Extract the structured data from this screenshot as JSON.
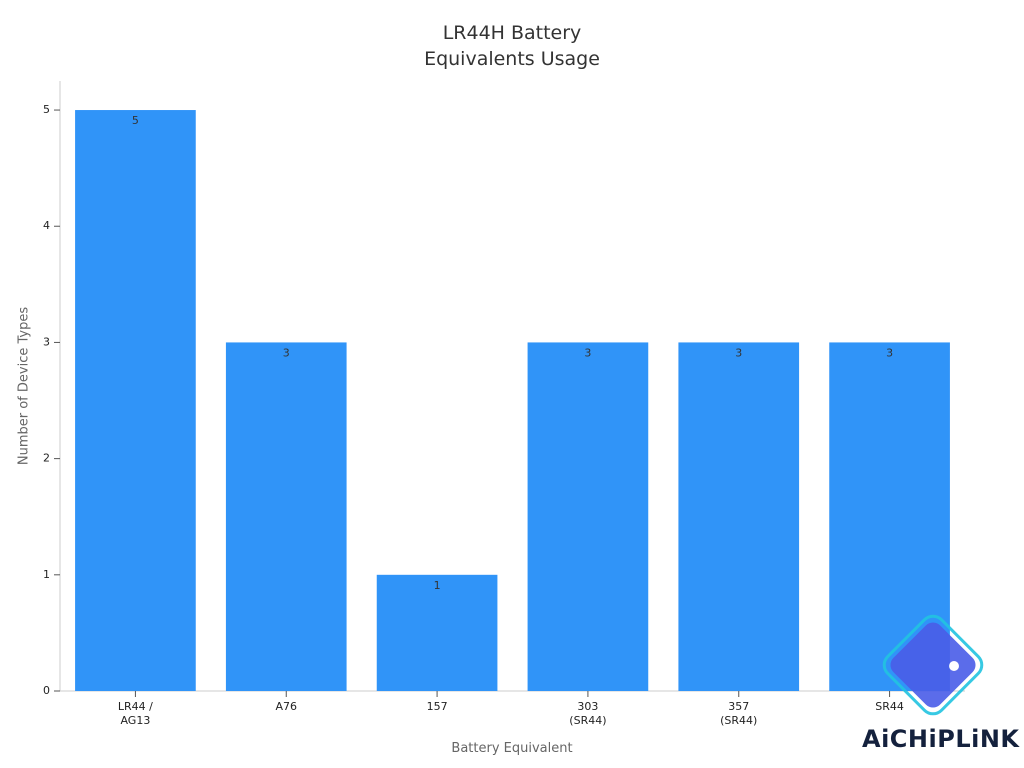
{
  "chart_data": {
    "type": "bar",
    "title": "LR44H Battery Equivalents Usage",
    "x_label": "Battery Equivalent",
    "y_label": "Number of Device Types",
    "categories": [
      "LR44 / AG13",
      "A76",
      "157",
      "303 (SR44)",
      "357 (SR44)",
      "SR44"
    ],
    "values": [
      5,
      3,
      1,
      3,
      3,
      3
    ],
    "color": "#3094f8",
    "ylim": [
      0,
      5.25
    ],
    "yticks": [
      0,
      1,
      2,
      3,
      4,
      5
    ],
    "grid": false
  },
  "watermark": "AiCHiPLiNK"
}
